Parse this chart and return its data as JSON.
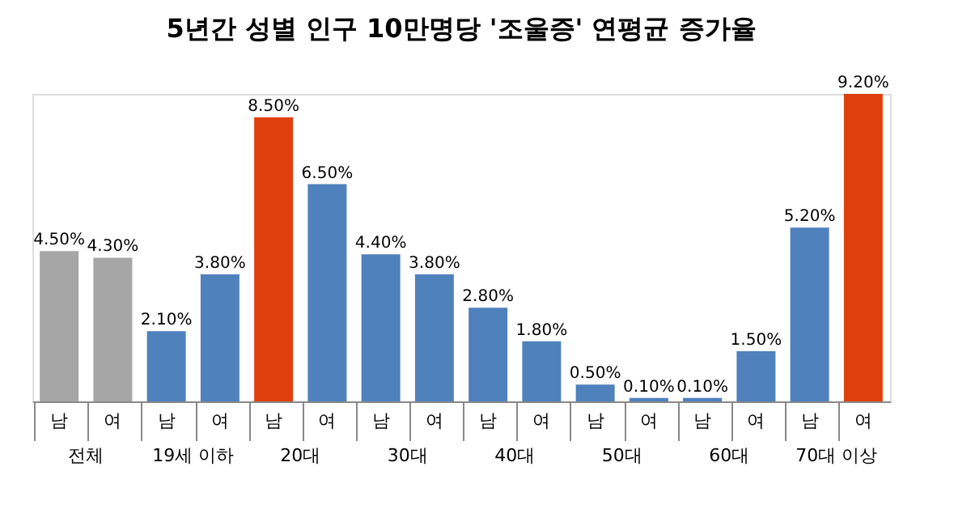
{
  "chart_data": {
    "type": "bar",
    "title": "5년간 성별 인구 10만명당 '조울증' 연평균 증가율",
    "categories": [
      "남",
      "여",
      "남",
      "여",
      "남",
      "여",
      "남",
      "여",
      "남",
      "여",
      "남",
      "여",
      "남",
      "여",
      "남",
      "여"
    ],
    "values": [
      4.5,
      4.3,
      2.1,
      3.8,
      8.5,
      6.5,
      4.4,
      3.8,
      2.8,
      1.8,
      0.5,
      0.1,
      0.1,
      1.5,
      5.2,
      9.2
    ],
    "colors": [
      "#a6a6a6",
      "#a6a6a6",
      "#4f81bd",
      "#4f81bd",
      "#e0400e",
      "#4f81bd",
      "#4f81bd",
      "#4f81bd",
      "#4f81bd",
      "#4f81bd",
      "#4f81bd",
      "#4f81bd",
      "#4f81bd",
      "#4f81bd",
      "#4f81bd",
      "#e0400e"
    ],
    "value_labels": [
      "4.50%",
      "4.30%",
      "2.10%",
      "3.80%",
      "8.50%",
      "6.50%",
      "4.40%",
      "3.80%",
      "2.80%",
      "1.80%",
      "0.50%",
      "0.10%",
      "0.10%",
      "1.50%",
      "5.20%",
      "9.20%"
    ],
    "annotations": [
      "전체",
      "19세 이하",
      "20대",
      "30대",
      "40대",
      "50대",
      "60대",
      "70대 이상"
    ],
    "grid": false
  }
}
